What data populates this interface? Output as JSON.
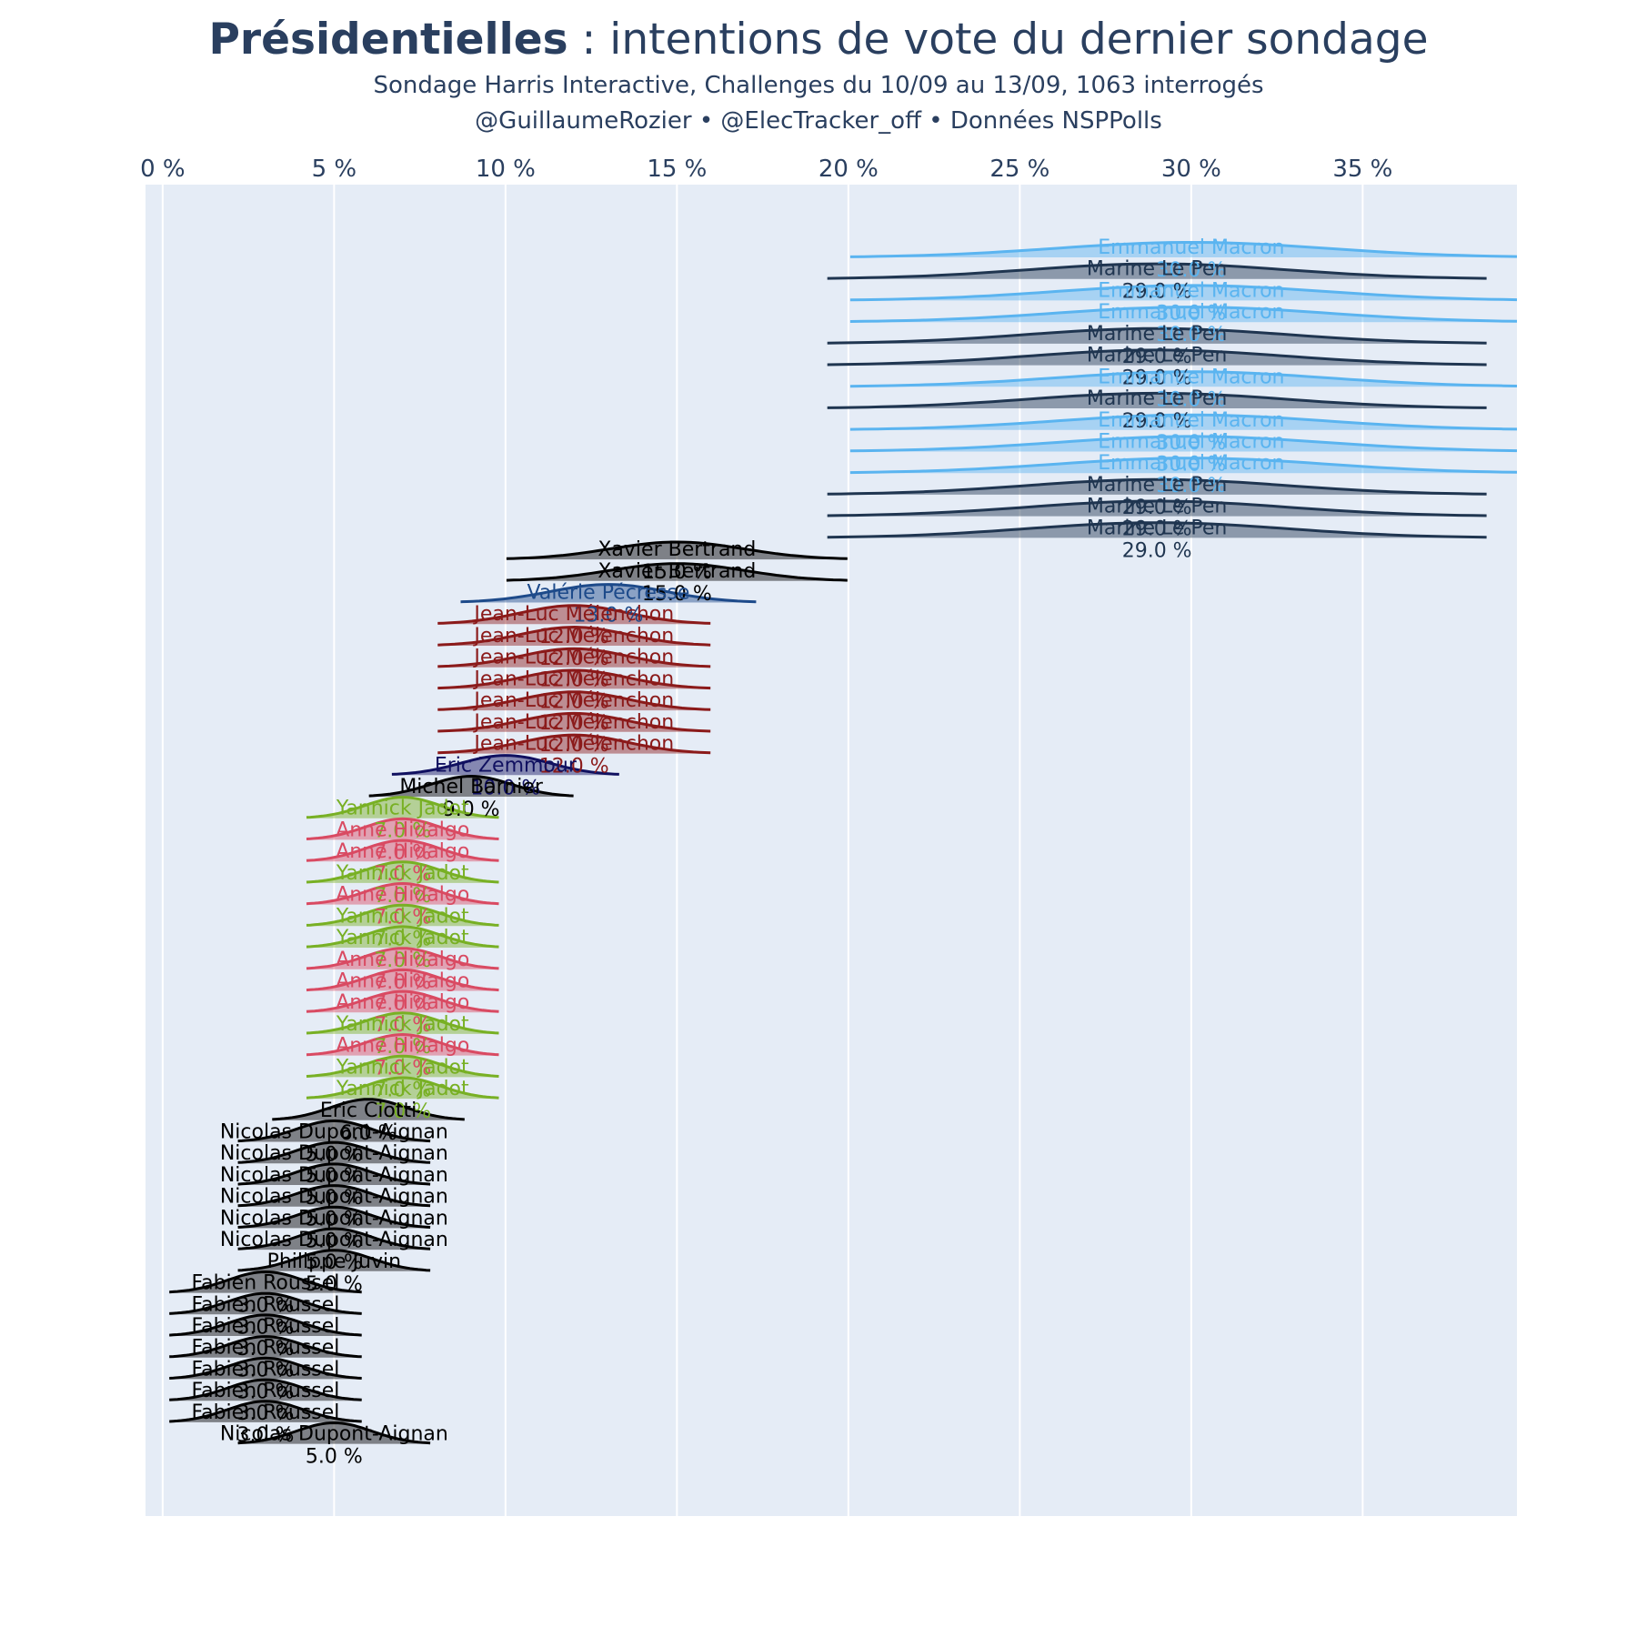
{
  "header": {
    "title_bold": "Présidentielles",
    "title_rest": " : intentions de vote du dernier sondage",
    "subtitle_1": "Sondage Harris Interactive, Challenges du 10/09 au 13/09, 1063 interrogés",
    "subtitle_2": "@GuillaumeRozier • @ElecTracker_off • Données NSPPolls"
  },
  "chart_data": {
    "type": "violin",
    "orientation": "horizontal",
    "x_axis": {
      "position": "top",
      "range": [
        -0.5,
        39.5
      ],
      "ticks": [
        0,
        5,
        10,
        15,
        20,
        25,
        30,
        35
      ],
      "tick_labels": [
        "0 %",
        "5 %",
        "10 %",
        "15 %",
        "20 %",
        "25 %",
        "30 %",
        "35 %"
      ],
      "grid": true
    },
    "background_color": "#e5ecf6",
    "candidate_colors": {
      "Emmanuel Macron": "#5ab4f0",
      "Marine Le Pen": "#1f3550",
      "Xavier Bertrand": "#000000",
      "Valérie Pécresse": "#1d4a8a",
      "Jean-Luc Mélenchon": "#8b1a1a",
      "Eric Zemmour": "#101060",
      "Michel Barnier": "#000000",
      "Yannick Jadot": "#78b024",
      "Anne Hidalgo": "#d94a62",
      "Eric Ciotti": "#000000",
      "Nicolas Dupont-Aignan": "#000000",
      "Philippe Juvin": "#000000",
      "Fabien Roussel": "#000000"
    },
    "traces": [
      {
        "name": "Emmanuel Macron",
        "value": 30.0,
        "label": "30.0 %"
      },
      {
        "name": "Marine Le Pen",
        "value": 29.0,
        "label": "29.0 %"
      },
      {
        "name": "Emmanuel Macron",
        "value": 30.0,
        "label": "30.0 %"
      },
      {
        "name": "Emmanuel Macron",
        "value": 30.0,
        "label": "30.0 %"
      },
      {
        "name": "Marine Le Pen",
        "value": 29.0,
        "label": "29.0 %"
      },
      {
        "name": "Marine Le Pen",
        "value": 29.0,
        "label": "29.0 %"
      },
      {
        "name": "Emmanuel Macron",
        "value": 30.0,
        "label": "30.0 %"
      },
      {
        "name": "Marine Le Pen",
        "value": 29.0,
        "label": "29.0 %"
      },
      {
        "name": "Emmanuel Macron",
        "value": 30.0,
        "label": "30.0 %"
      },
      {
        "name": "Emmanuel Macron",
        "value": 30.0,
        "label": "30.0 %"
      },
      {
        "name": "Emmanuel Macron",
        "value": 30.0,
        "label": "30.0 %"
      },
      {
        "name": "Marine Le Pen",
        "value": 29.0,
        "label": "29.0 %"
      },
      {
        "name": "Marine Le Pen",
        "value": 29.0,
        "label": "29.0 %"
      },
      {
        "name": "Marine Le Pen",
        "value": 29.0,
        "label": "29.0 %"
      },
      {
        "name": "Xavier Bertrand",
        "value": 15.0,
        "label": "15.0 %"
      },
      {
        "name": "Xavier Bertrand",
        "value": 15.0,
        "label": "15.0 %"
      },
      {
        "name": "Valérie Pécresse",
        "value": 13.0,
        "label": "13.0 %"
      },
      {
        "name": "Jean-Luc Mélenchon",
        "value": 12.0,
        "label": "12.0 %"
      },
      {
        "name": "Jean-Luc Mélenchon",
        "value": 12.0,
        "label": "12.0 %"
      },
      {
        "name": "Jean-Luc Mélenchon",
        "value": 12.0,
        "label": "12.0 %"
      },
      {
        "name": "Jean-Luc Mélenchon",
        "value": 12.0,
        "label": "12.0 %"
      },
      {
        "name": "Jean-Luc Mélenchon",
        "value": 12.0,
        "label": "12.0 %"
      },
      {
        "name": "Jean-Luc Mélenchon",
        "value": 12.0,
        "label": "12.0 %"
      },
      {
        "name": "Jean-Luc Mélenchon",
        "value": 12.0,
        "label": "12.0 %"
      },
      {
        "name": "Eric Zemmour",
        "value": 10.0,
        "label": "10.0 %"
      },
      {
        "name": "Michel Barnier",
        "value": 9.0,
        "label": "9.0 %"
      },
      {
        "name": "Yannick Jadot",
        "value": 7.0,
        "label": "7.0 %"
      },
      {
        "name": "Anne Hidalgo",
        "value": 7.0,
        "label": "7.0 %"
      },
      {
        "name": "Anne Hidalgo",
        "value": 7.0,
        "label": "7.0 %"
      },
      {
        "name": "Yannick Jadot",
        "value": 7.0,
        "label": "7.0 %"
      },
      {
        "name": "Anne Hidalgo",
        "value": 7.0,
        "label": "7.0 %"
      },
      {
        "name": "Yannick Jadot",
        "value": 7.0,
        "label": "7.0 %"
      },
      {
        "name": "Yannick Jadot",
        "value": 7.0,
        "label": "7.0 %"
      },
      {
        "name": "Anne Hidalgo",
        "value": 7.0,
        "label": "7.0 %"
      },
      {
        "name": "Anne Hidalgo",
        "value": 7.0,
        "label": "7.0 %"
      },
      {
        "name": "Anne Hidalgo",
        "value": 7.0,
        "label": "7.0 %"
      },
      {
        "name": "Yannick Jadot",
        "value": 7.0,
        "label": "7.0 %"
      },
      {
        "name": "Anne Hidalgo",
        "value": 7.0,
        "label": "7.0 %"
      },
      {
        "name": "Yannick Jadot",
        "value": 7.0,
        "label": "7.0 %"
      },
      {
        "name": "Yannick Jadot",
        "value": 7.0,
        "label": "7.0 %"
      },
      {
        "name": "Eric Ciotti",
        "value": 6.0,
        "label": "6.0 %"
      },
      {
        "name": "Nicolas Dupont-Aignan",
        "value": 5.0,
        "label": "5.0 %"
      },
      {
        "name": "Nicolas Dupont-Aignan",
        "value": 5.0,
        "label": "5.0 %"
      },
      {
        "name": "Nicolas Dupont-Aignan",
        "value": 5.0,
        "label": "5.0 %"
      },
      {
        "name": "Nicolas Dupont-Aignan",
        "value": 5.0,
        "label": "5.0 %"
      },
      {
        "name": "Nicolas Dupont-Aignan",
        "value": 5.0,
        "label": "5.0 %"
      },
      {
        "name": "Nicolas Dupont-Aignan",
        "value": 5.0,
        "label": "5.0 %"
      },
      {
        "name": "Philippe Juvin",
        "value": 5.0,
        "label": "5.0 %"
      },
      {
        "name": "Fabien Roussel",
        "value": 3.0,
        "label": "3.0 %"
      },
      {
        "name": "Fabien Roussel",
        "value": 3.0,
        "label": "3.0 %"
      },
      {
        "name": "Fabien Roussel",
        "value": 3.0,
        "label": "3.0 %"
      },
      {
        "name": "Fabien Roussel",
        "value": 3.0,
        "label": "3.0 %"
      },
      {
        "name": "Fabien Roussel",
        "value": 3.0,
        "label": "3.0 %"
      },
      {
        "name": "Fabien Roussel",
        "value": 3.0,
        "label": "3.0 %"
      },
      {
        "name": "Fabien Roussel",
        "value": 3.0,
        "label": "3.0 %"
      },
      {
        "name": "Nicolas Dupont-Aignan",
        "value": 5.0,
        "label": "5.0 %"
      }
    ]
  }
}
